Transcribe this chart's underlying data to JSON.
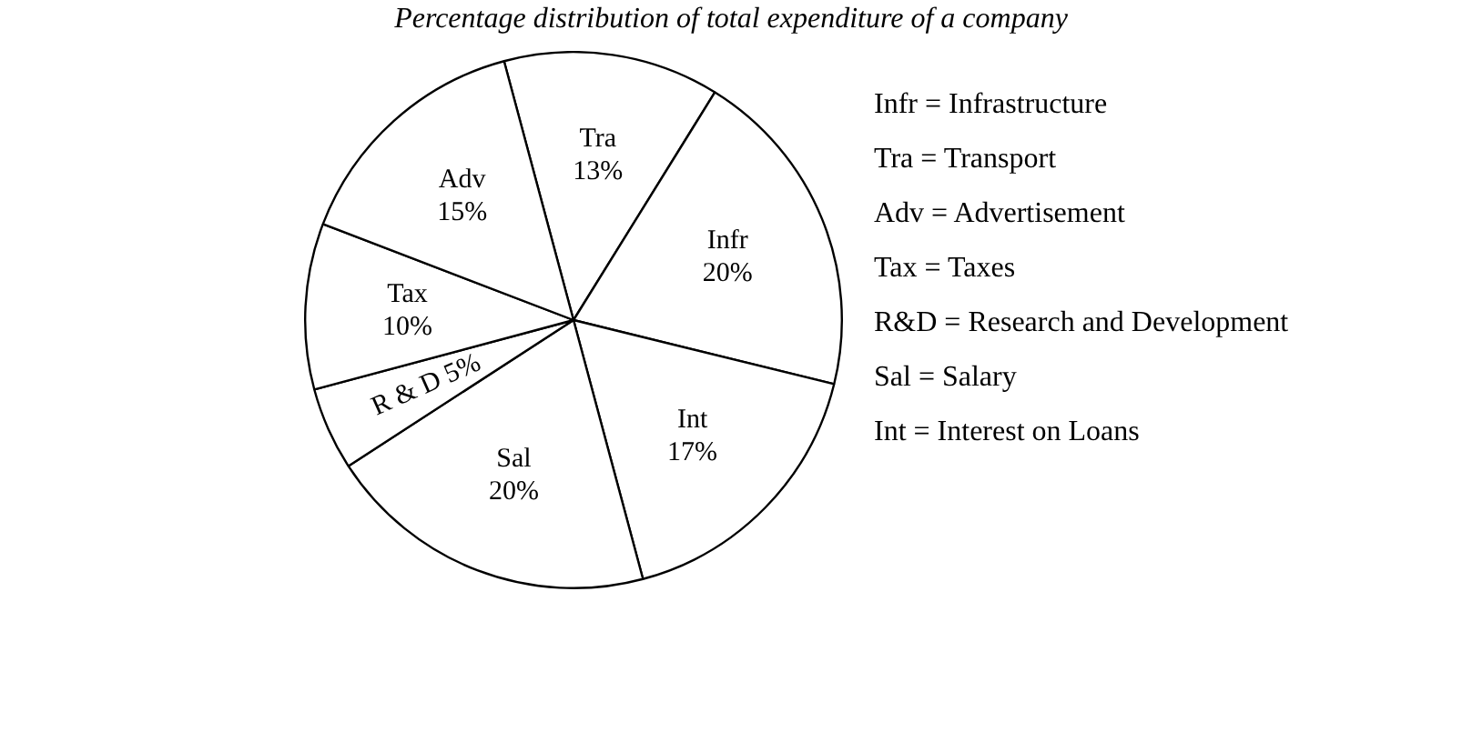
{
  "chart_data": {
    "type": "pie",
    "title": "Percentage distribution of total expenditure of a company",
    "categories": [
      "Tra",
      "Infr",
      "Int",
      "Sal",
      "R & D",
      "Tax",
      "Adv"
    ],
    "values": [
      13,
      20,
      17,
      20,
      5,
      10,
      15
    ],
    "value_labels": [
      "13%",
      "20%",
      "17%",
      "20%",
      "5%",
      "10%",
      "15%"
    ],
    "colors": [
      "#ffffff",
      "#ffffff",
      "#ffffff",
      "#ffffff",
      "#ffffff",
      "#ffffff",
      "#ffffff"
    ],
    "legend": false,
    "annotations": [
      "Infr = Infrastructure",
      "Tra = Transport",
      "Adv = Advertisement",
      "Tax = Taxes",
      "R&D = Research and Development",
      "Sal = Salary",
      "Int = Interest on Loans"
    ]
  }
}
